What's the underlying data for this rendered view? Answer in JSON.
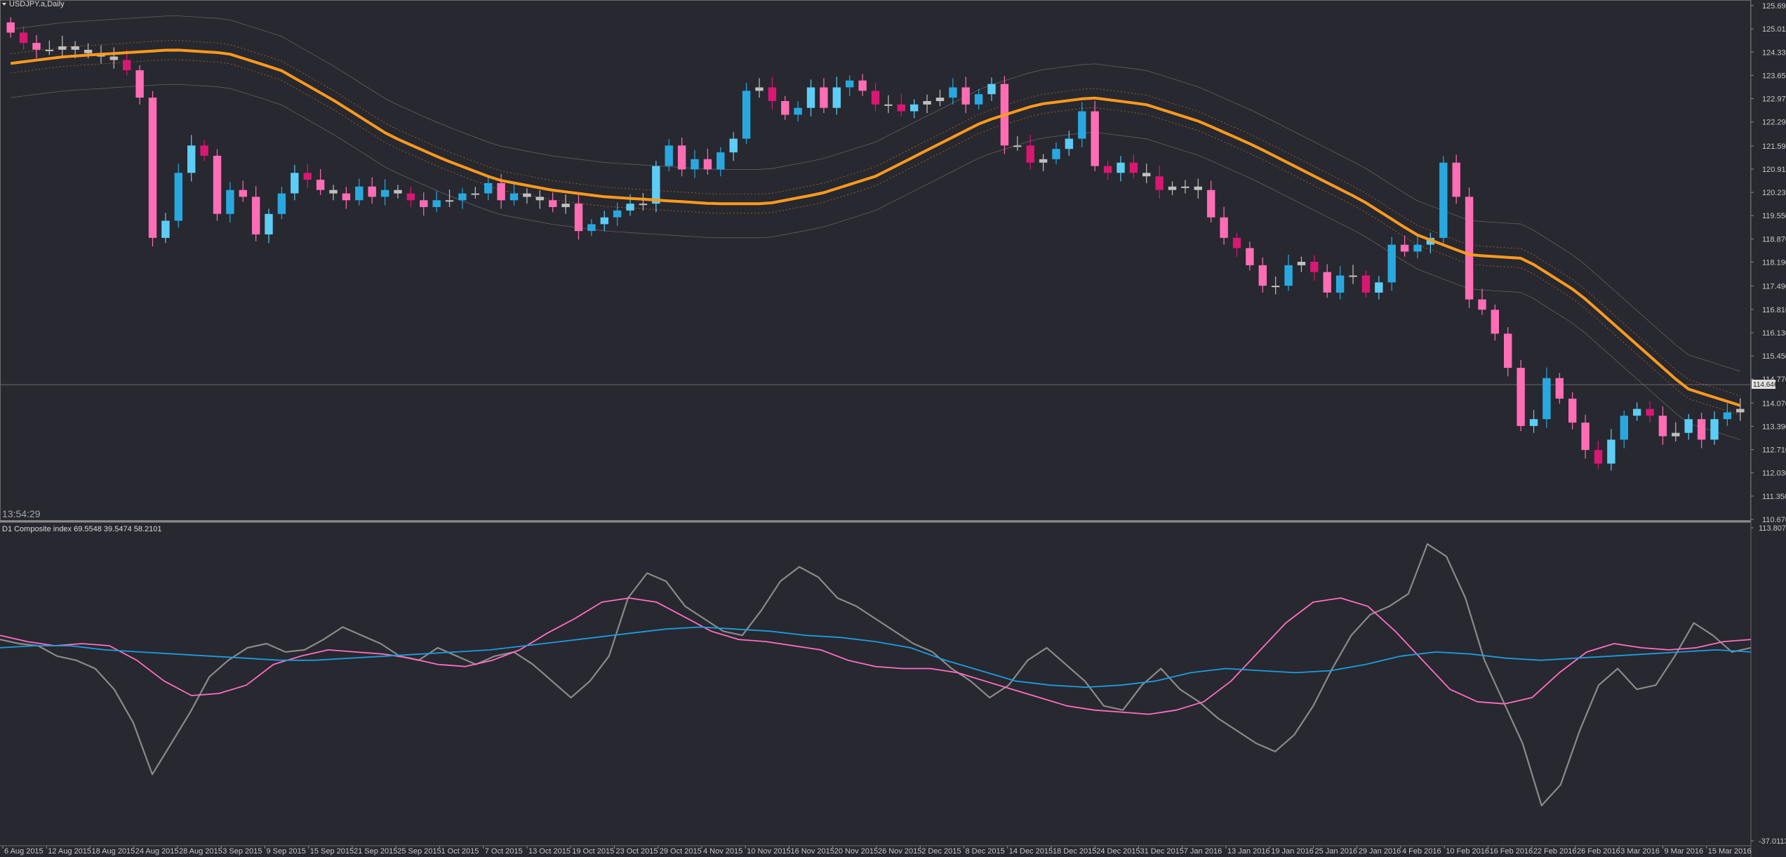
{
  "window": {
    "title": "USDJPY.a,Daily",
    "clock": "13:54:29",
    "indicator_title": "D1  Composite index 69.5548 39.5474 58.2101"
  },
  "colors": {
    "background": "#282830",
    "bull_candle": "#29a8e0",
    "bull_candle_light": "#5dcdf5",
    "bear_candle": "#ff6eb4",
    "bear_candle_dark": "#d81872",
    "neutral_candle": "#c0c0c0",
    "ma_line": "#ff9a1c",
    "band_line": "#9a9a9a",
    "composite_line": "#8a8a8a",
    "fast_avg_line": "#ff6ec2",
    "slow_avg_line": "#1a9ee0"
  },
  "chart_data": [
    {
      "type": "candlestick",
      "symbol": "USDJPY.a",
      "timeframe": "Daily",
      "ylim": [
        110.67,
        125.69
      ],
      "y_ticks": [
        "125.690",
        "125.010",
        "124.330",
        "123.650",
        "122.970",
        "122.290",
        "121.590",
        "120.910",
        "120.230",
        "119.550",
        "118.870",
        "118.190",
        "117.490",
        "116.810",
        "116.130",
        "115.450",
        "114.770",
        "114.070",
        "113.390",
        "112.710",
        "112.030",
        "111.350",
        "110.670"
      ],
      "current_price": "114.646",
      "x_labels": [
        "6 Aug 2015",
        "12 Aug 2015",
        "18 Aug 2015",
        "24 Aug 2015",
        "28 Aug 2015",
        "3 Sep 2015",
        "9 Sep 2015",
        "15 Sep 2015",
        "21 Sep 2015",
        "25 Sep 2015",
        "1 Oct 2015",
        "7 Oct 2015",
        "13 Oct 2015",
        "19 Oct 2015",
        "23 Oct 2015",
        "29 Oct 2015",
        "4 Nov 2015",
        "10 Nov 2015",
        "16 Nov 2015",
        "20 Nov 2015",
        "26 Nov 2015",
        "2 Dec 2015",
        "8 Dec 2015",
        "14 Dec 2015",
        "18 Dec 2015",
        "24 Dec 2015",
        "31 Dec 2015",
        "7 Jan 2016",
        "13 Jan 2016",
        "19 Jan 2016",
        "25 Jan 2016",
        "29 Jan 2016",
        "4 Feb 2016",
        "10 Feb 2016",
        "16 Feb 2016",
        "22 Feb 2016",
        "26 Feb 2016",
        "3 Mar 2016",
        "9 Mar 2016",
        "15 Mar 2016"
      ],
      "close": [
        124.9,
        124.6,
        124.4,
        124.4,
        124.5,
        124.4,
        124.3,
        124.2,
        124.1,
        123.8,
        123.0,
        118.9,
        119.4,
        120.8,
        121.6,
        121.3,
        119.6,
        120.3,
        120.1,
        119.0,
        119.6,
        120.2,
        120.8,
        120.6,
        120.3,
        120.2,
        120.0,
        120.4,
        120.1,
        120.3,
        120.2,
        120.0,
        119.8,
        120.0,
        120.0,
        120.2,
        120.2,
        120.5,
        120.0,
        120.2,
        120.1,
        120.0,
        119.8,
        119.9,
        119.1,
        119.3,
        119.5,
        119.7,
        119.9,
        119.9,
        121.0,
        121.6,
        120.9,
        121.2,
        120.9,
        121.4,
        121.8,
        123.2,
        123.3,
        122.9,
        122.5,
        122.7,
        123.3,
        122.7,
        123.3,
        123.5,
        123.2,
        122.8,
        122.8,
        122.6,
        122.8,
        122.9,
        123.0,
        123.3,
        122.8,
        123.1,
        123.4,
        121.6,
        121.6,
        121.1,
        121.2,
        121.5,
        121.8,
        122.6,
        121.0,
        120.8,
        121.1,
        120.8,
        120.7,
        120.3,
        120.4,
        120.4,
        120.3,
        119.5,
        118.9,
        118.6,
        118.1,
        117.5,
        117.5,
        118.1,
        118.2,
        117.9,
        117.3,
        117.8,
        117.8,
        117.3,
        117.6,
        118.7,
        118.5,
        118.7,
        118.9,
        121.1,
        120.1,
        117.1,
        116.8,
        116.1,
        115.1,
        113.4,
        113.6,
        114.8,
        114.2,
        113.5,
        112.7,
        112.3,
        113.0,
        113.7,
        113.9,
        113.7,
        113.1,
        113.2,
        113.6,
        113.0,
        113.6,
        113.8,
        113.9
      ],
      "moving_average_values": [
        124.0,
        124.2,
        124.3,
        124.4,
        124.3,
        123.8,
        122.9,
        121.9,
        121.2,
        120.6,
        120.3,
        120.1,
        120.0,
        119.9,
        119.9,
        120.2,
        120.7,
        121.5,
        122.3,
        122.8,
        123.0,
        122.8,
        122.3,
        121.6,
        120.8,
        120.0,
        119.0,
        118.4,
        118.3,
        117.3,
        115.9,
        114.5,
        114.0
      ]
    },
    {
      "type": "line",
      "title": "Composite index",
      "ylim": [
        -37.0113,
        113.8075
      ],
      "y_ticks": [
        "113.8075",
        "-37.0113"
      ],
      "series": [
        {
          "values": [
            60,
            58,
            57,
            52,
            50,
            46,
            36,
            20,
            -5,
            10,
            25,
            42,
            50,
            56,
            58,
            54,
            55,
            60,
            66,
            62,
            58,
            52,
            50,
            56,
            52,
            48,
            52,
            54,
            48,
            40,
            32,
            40,
            52,
            80,
            92,
            88,
            76,
            70,
            64,
            62,
            74,
            88,
            95,
            90,
            80,
            76,
            70,
            64,
            58,
            54,
            46,
            40,
            32,
            38,
            50,
            56,
            48,
            40,
            28,
            26,
            38,
            46,
            36,
            30,
            22,
            16,
            10,
            6,
            14,
            28,
            46,
            62,
            72,
            76,
            82,
            106,
            100,
            80,
            50,
            30,
            10,
            -20,
            -10,
            16,
            38,
            46,
            36,
            38,
            52,
            68,
            62,
            54,
            56
          ]
        },
        {
          "values": [
            62,
            59,
            57,
            58,
            57,
            50,
            40,
            33,
            34,
            38,
            48,
            52,
            55,
            54,
            53,
            51,
            48,
            47,
            50,
            55,
            63,
            70,
            78,
            80,
            78,
            71,
            64,
            60,
            59,
            57,
            55,
            50,
            47,
            46,
            46,
            44,
            40,
            36,
            32,
            28,
            26,
            25,
            24,
            26,
            30,
            40,
            54,
            68,
            78,
            80,
            76,
            64,
            50,
            36,
            30,
            29,
            32,
            44,
            54,
            58,
            56,
            55,
            56,
            59,
            60
          ]
        },
        {
          "values": [
            56,
            57,
            57,
            55,
            54,
            53,
            52,
            51,
            50,
            50,
            51,
            52,
            53,
            54,
            55,
            57,
            59,
            61,
            63,
            65,
            66,
            65,
            64,
            62,
            61,
            59,
            56,
            50,
            45,
            40,
            38,
            37,
            38,
            40,
            44,
            46,
            45,
            44,
            45,
            48,
            52,
            54,
            53,
            51,
            50,
            51,
            52,
            53,
            54,
            55,
            54
          ]
        }
      ]
    }
  ]
}
